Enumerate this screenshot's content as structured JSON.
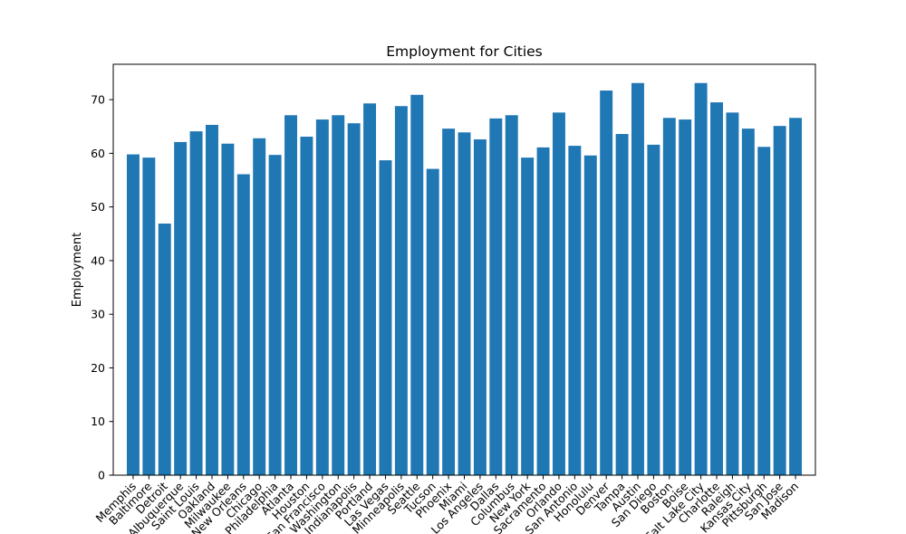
{
  "chart_data": {
    "type": "bar",
    "title": "Employment for Cities",
    "xlabel": "",
    "ylabel": "Employment",
    "ylim": [
      0,
      76.6
    ],
    "yticks": [
      0,
      10,
      20,
      30,
      40,
      50,
      60,
      70
    ],
    "grid": false,
    "legend": "none",
    "bar_color": "#1f77b4",
    "categories": [
      "Memphis",
      "Baltimore",
      "Detroit",
      "Albuquerque",
      "Saint Louis",
      "Oakland",
      "Milwaukee",
      "New Orleans",
      "Chicago",
      "Philadelphia",
      "Atlanta",
      "Houston",
      "San Francisco",
      "Washington",
      "Indianapolis",
      "Portland",
      "Las Vegas",
      "Minneapolis",
      "Seattle",
      "Tucson",
      "Phoenix",
      "Miami",
      "Los Angeles",
      "Dallas",
      "Columbus",
      "New York",
      "Sacramento",
      "Orlando",
      "San Antonio",
      "Honolulu",
      "Denver",
      "Tampa",
      "Austin",
      "San Diego",
      "Boston",
      "Boise",
      "Salt Lake City",
      "Charlotte",
      "Raleigh",
      "Kansas City",
      "Pittsburgh",
      "San Jose",
      "Madison"
    ],
    "values": [
      59.8,
      59.2,
      46.9,
      62.1,
      64.1,
      65.3,
      61.8,
      56.1,
      62.8,
      59.7,
      67.1,
      63.1,
      66.3,
      67.1,
      65.6,
      69.3,
      58.7,
      68.8,
      70.9,
      57.1,
      64.6,
      63.9,
      62.6,
      66.5,
      67.1,
      59.2,
      61.1,
      67.6,
      61.4,
      59.6,
      71.7,
      63.6,
      73.1,
      61.6,
      66.6,
      66.3,
      73.1,
      69.5,
      67.6,
      64.6,
      61.2,
      65.1,
      66.6
    ]
  }
}
